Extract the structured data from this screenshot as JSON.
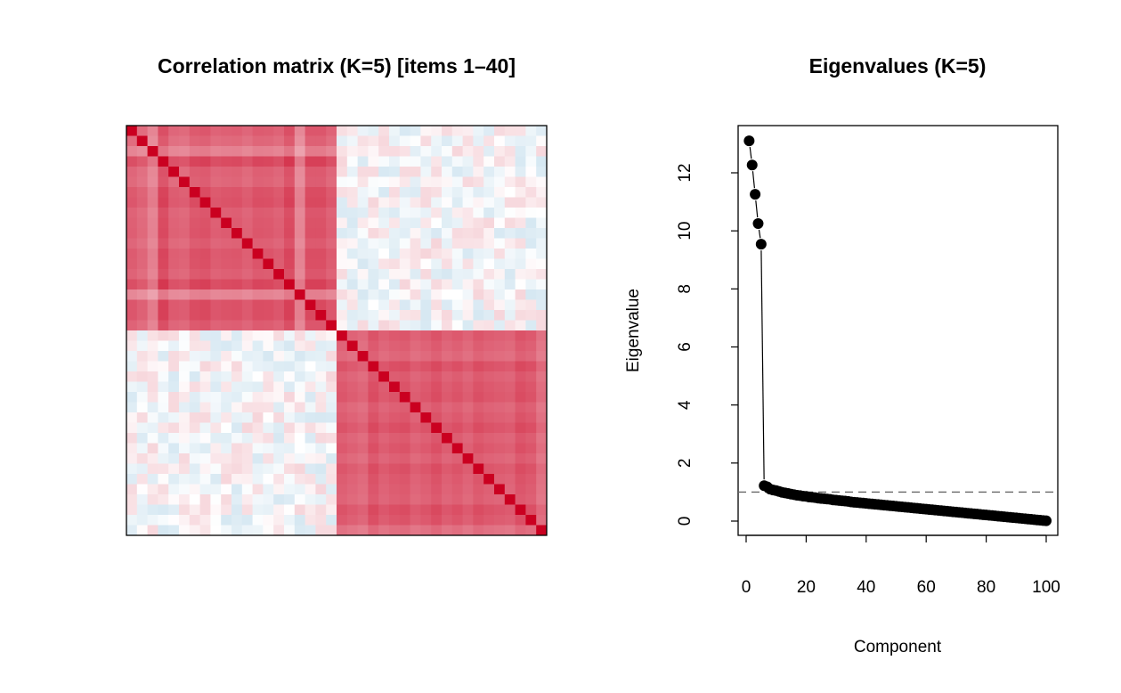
{
  "chart_data": [
    {
      "type": "heatmap",
      "title": "Correlation matrix (K=5) [items 1–40]",
      "n_items": 40,
      "blocks": [
        [
          1,
          20
        ],
        [
          21,
          40
        ]
      ],
      "diagonal": 1,
      "item_loadings": [
        0.72,
        0.66,
        0.52,
        0.85,
        0.7,
        0.68,
        0.78,
        0.8,
        0.72,
        0.74,
        0.75,
        0.7,
        0.77,
        0.76,
        0.72,
        0.85,
        0.5,
        0.8,
        0.8,
        0.72,
        0.74,
        0.7,
        0.66,
        0.8,
        0.72,
        0.76,
        0.78,
        0.7,
        0.74,
        0.8,
        0.72,
        0.76,
        0.7,
        0.78,
        0.74,
        0.72,
        0.7,
        0.8,
        0.76,
        0.62
      ],
      "between_block_correlation": 0,
      "color_scale": {
        "low": "#0571B0",
        "mid": "#FFFFFF",
        "high": "#CA0020",
        "range": [
          -1,
          1
        ]
      },
      "axes": "none"
    },
    {
      "type": "line",
      "title": "Eigenvalues (K=5)",
      "xlabel": "Component",
      "ylabel": "Eigenvalue",
      "xlim": [
        0,
        100
      ],
      "ylim": [
        0,
        13.1
      ],
      "xticks": [
        0,
        20,
        40,
        60,
        80,
        100
      ],
      "yticks": [
        0,
        2,
        4,
        6,
        8,
        10,
        12
      ],
      "reference_line": {
        "y": 1,
        "style": "dashed",
        "color": "#666666"
      },
      "marker_color": "#000000",
      "x": [
        1,
        2,
        3,
        4,
        5,
        6,
        7,
        8,
        9,
        10,
        11,
        12,
        13,
        14,
        15,
        16,
        17,
        18,
        19,
        20,
        21,
        22,
        23,
        24,
        25,
        26,
        27,
        28,
        29,
        30,
        31,
        32,
        33,
        34,
        35,
        36,
        37,
        38,
        39,
        40,
        41,
        42,
        43,
        44,
        45,
        46,
        47,
        48,
        49,
        50,
        51,
        52,
        53,
        54,
        55,
        56,
        57,
        58,
        59,
        60,
        61,
        62,
        63,
        64,
        65,
        66,
        67,
        68,
        69,
        70,
        71,
        72,
        73,
        74,
        75,
        76,
        77,
        78,
        79,
        80,
        81,
        82,
        83,
        84,
        85,
        86,
        87,
        88,
        89,
        90,
        91,
        92,
        93,
        94,
        95,
        96,
        97,
        98,
        99,
        100
      ],
      "values": [
        13.1,
        12.27,
        11.26,
        10.25,
        9.54,
        1.22,
        1.18,
        1.1,
        1.07,
        1.05,
        1.02,
        0.99,
        0.97,
        0.95,
        0.93,
        0.91,
        0.89,
        0.88,
        0.86,
        0.85,
        0.83,
        0.82,
        0.81,
        0.79,
        0.78,
        0.77,
        0.76,
        0.75,
        0.73,
        0.72,
        0.71,
        0.7,
        0.69,
        0.68,
        0.66,
        0.65,
        0.64,
        0.63,
        0.62,
        0.61,
        0.6,
        0.59,
        0.58,
        0.57,
        0.56,
        0.55,
        0.54,
        0.53,
        0.52,
        0.51,
        0.5,
        0.49,
        0.48,
        0.47,
        0.46,
        0.45,
        0.44,
        0.43,
        0.42,
        0.41,
        0.4,
        0.39,
        0.38,
        0.37,
        0.36,
        0.35,
        0.34,
        0.33,
        0.32,
        0.31,
        0.3,
        0.29,
        0.28,
        0.27,
        0.26,
        0.25,
        0.24,
        0.23,
        0.22,
        0.21,
        0.2,
        0.19,
        0.18,
        0.17,
        0.16,
        0.15,
        0.14,
        0.13,
        0.12,
        0.11,
        0.1,
        0.09,
        0.08,
        0.07,
        0.06,
        0.05,
        0.04,
        0.03,
        0.02,
        0.01
      ]
    }
  ]
}
